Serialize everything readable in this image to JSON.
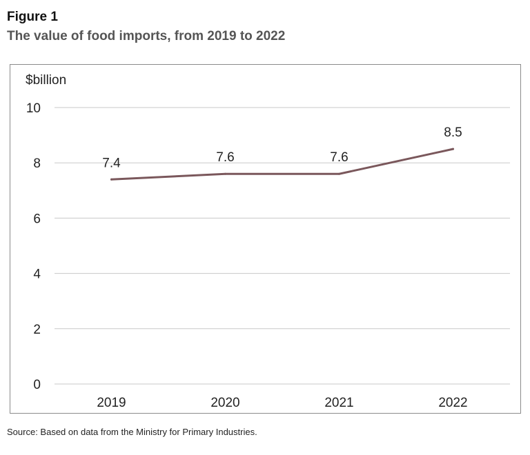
{
  "figure": {
    "label": "Figure 1",
    "title": "The value of food imports, from 2019 to 2022",
    "source": "Source: Based on data from the Ministry for Primary Industries."
  },
  "chart_data": {
    "type": "line",
    "title": "The value of food imports, from 2019 to 2022",
    "ylabel": "$billion",
    "xlabel": "",
    "categories": [
      "2019",
      "2020",
      "2021",
      "2022"
    ],
    "values": [
      7.4,
      7.6,
      7.6,
      8.5
    ],
    "data_labels": [
      "7.4",
      "7.6",
      "7.6",
      "8.5"
    ],
    "ylim": [
      0,
      10
    ],
    "yticks": [
      0,
      2,
      4,
      6,
      8,
      10
    ],
    "ytick_labels": [
      "0",
      "2",
      "4",
      "6",
      "8",
      "10"
    ],
    "grid": true,
    "line_color": "#7a575b",
    "grid_color": "#c8c8c8",
    "text_color": "#222222"
  }
}
